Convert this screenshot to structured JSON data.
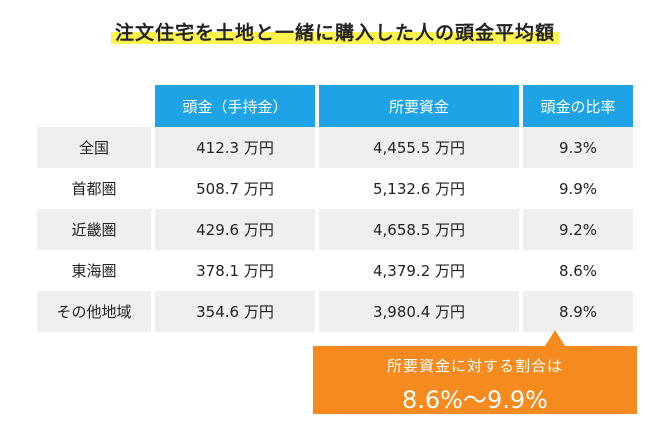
{
  "title": "注文住宅を土地と一緒に購入した人の頭金平均額",
  "table": {
    "headers": [
      "",
      "頭金（手持金）",
      "所要資金",
      "頭金の比率"
    ],
    "rows": [
      {
        "region": "全国",
        "down_payment": "412.3 万円",
        "required_funds": "4,455.5 万円",
        "ratio": "9.3%"
      },
      {
        "region": "首都圏",
        "down_payment": "508.7 万円",
        "required_funds": "5,132.6 万円",
        "ratio": "9.9%"
      },
      {
        "region": "近畿圏",
        "down_payment": "429.6 万円",
        "required_funds": "4,658.5 万円",
        "ratio": "9.2%"
      },
      {
        "region": "東海圏",
        "down_payment": "378.1 万円",
        "required_funds": "4,379.2 万円",
        "ratio": "8.6%"
      },
      {
        "region": "その他地域",
        "down_payment": "354.6 万円",
        "required_funds": "3,980.4 万円",
        "ratio": "8.9%"
      }
    ]
  },
  "callout": {
    "label": "所要資金に対する割合は",
    "range": "8.6%～9.9%"
  },
  "colors": {
    "header_blue": "#1ea4e6",
    "highlight_yellow": "#fff34d",
    "callout_orange": "#f58a1f",
    "row_gray": "#efefef"
  }
}
